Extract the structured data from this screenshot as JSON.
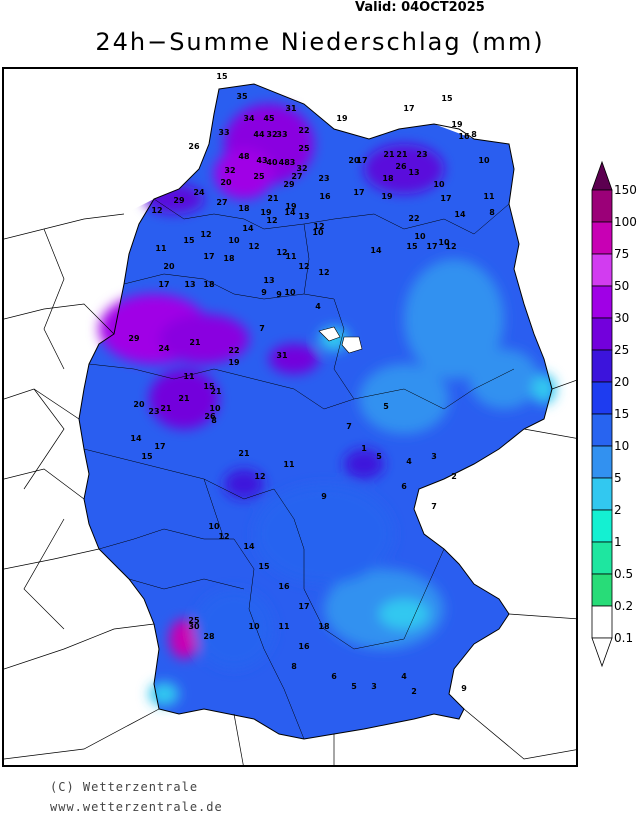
{
  "header": {
    "valid_label": "Valid: 04OCT2025",
    "title": "24h−Summe Niederschlag (mm)"
  },
  "legend": {
    "levels": [
      "150",
      "100",
      "75",
      "50",
      "30",
      "25",
      "20",
      "15",
      "10",
      "5",
      "2",
      "1",
      "0.5",
      "0.2",
      "0.1"
    ],
    "colors": [
      "#5c0050",
      "#9b0078",
      "#c800b4",
      "#d23cf0",
      "#a000e6",
      "#7300dc",
      "#3c14dc",
      "#1e3cf0",
      "#2864f0",
      "#3291f0",
      "#32c8f0",
      "#14f0d2",
      "#1ee6a0",
      "#28dc78",
      "#ffffff"
    ]
  },
  "footer": {
    "copyright": "(C) Wetterzentrale",
    "website": "www.wetterzentrale.de"
  },
  "map": {
    "stations": [
      {
        "v": "15"
      },
      {
        "v": "35"
      },
      {
        "v": "34"
      },
      {
        "v": "31"
      },
      {
        "v": "45"
      },
      {
        "v": "33"
      },
      {
        "v": "44"
      },
      {
        "v": "32"
      },
      {
        "v": "33"
      },
      {
        "v": "22"
      },
      {
        "v": "19"
      },
      {
        "v": "17"
      },
      {
        "v": "15"
      },
      {
        "v": "19"
      },
      {
        "v": "16"
      },
      {
        "v": "8"
      },
      {
        "v": "48"
      },
      {
        "v": "43"
      },
      {
        "v": "40"
      },
      {
        "v": "483"
      },
      {
        "v": "25"
      },
      {
        "v": "26"
      },
      {
        "v": "20"
      },
      {
        "v": "17"
      },
      {
        "v": "21"
      },
      {
        "v": "21"
      },
      {
        "v": "23"
      },
      {
        "v": "10"
      },
      {
        "v": "32"
      },
      {
        "v": "20"
      },
      {
        "v": "32"
      },
      {
        "v": "24"
      },
      {
        "v": "25"
      },
      {
        "v": "29"
      },
      {
        "v": "27"
      },
      {
        "v": "23"
      },
      {
        "v": "18"
      },
      {
        "v": "17"
      },
      {
        "v": "26"
      },
      {
        "v": "13"
      },
      {
        "v": "10"
      },
      {
        "v": "19"
      },
      {
        "v": "29"
      },
      {
        "v": "27"
      },
      {
        "v": "21"
      },
      {
        "v": "19"
      },
      {
        "v": "16"
      },
      {
        "v": "17"
      },
      {
        "v": "19"
      },
      {
        "v": "14"
      },
      {
        "v": "11"
      },
      {
        "v": "12"
      },
      {
        "v": "18"
      },
      {
        "v": "22"
      },
      {
        "v": "14"
      },
      {
        "v": "8"
      },
      {
        "v": "12"
      },
      {
        "v": "13"
      },
      {
        "v": "14"
      },
      {
        "v": "12"
      },
      {
        "v": "15"
      },
      {
        "v": "10"
      },
      {
        "v": "12"
      },
      {
        "v": "12"
      },
      {
        "v": "10"
      },
      {
        "v": "10"
      },
      {
        "v": "14"
      },
      {
        "v": "15"
      },
      {
        "v": "17"
      },
      {
        "v": "12"
      },
      {
        "v": "11"
      },
      {
        "v": "17"
      },
      {
        "v": "18"
      },
      {
        "v": "12"
      },
      {
        "v": "11"
      },
      {
        "v": "20"
      },
      {
        "v": "12"
      },
      {
        "v": "10"
      },
      {
        "v": "12"
      },
      {
        "v": "17"
      },
      {
        "v": "13"
      },
      {
        "v": "18"
      },
      {
        "v": "9"
      },
      {
        "v": "9"
      },
      {
        "v": "13"
      },
      {
        "v": "10"
      },
      {
        "v": "7"
      },
      {
        "v": "4"
      },
      {
        "v": "29"
      },
      {
        "v": "24"
      },
      {
        "v": "21"
      },
      {
        "v": "22"
      },
      {
        "v": "31"
      },
      {
        "v": "19"
      },
      {
        "v": "11"
      },
      {
        "v": "15"
      },
      {
        "v": "21"
      },
      {
        "v": "20"
      },
      {
        "v": "23"
      },
      {
        "v": "21"
      },
      {
        "v": "26"
      },
      {
        "v": "21"
      },
      {
        "v": "8"
      },
      {
        "v": "10"
      },
      {
        "v": "21"
      },
      {
        "v": "14"
      },
      {
        "v": "15"
      },
      {
        "v": "17"
      },
      {
        "v": "12"
      },
      {
        "v": "11"
      },
      {
        "v": "9"
      },
      {
        "v": "7"
      },
      {
        "v": "5"
      },
      {
        "v": "4"
      },
      {
        "v": "3"
      },
      {
        "v": "2"
      },
      {
        "v": "1"
      },
      {
        "v": "5"
      },
      {
        "v": "6"
      },
      {
        "v": "7"
      },
      {
        "v": "10"
      },
      {
        "v": "12"
      },
      {
        "v": "14"
      },
      {
        "v": "15"
      },
      {
        "v": "16"
      },
      {
        "v": "17"
      },
      {
        "v": "18"
      },
      {
        "v": "30"
      },
      {
        "v": "28"
      },
      {
        "v": "25"
      },
      {
        "v": "11"
      },
      {
        "v": "16"
      },
      {
        "v": "10"
      },
      {
        "v": "8"
      },
      {
        "v": "6"
      },
      {
        "v": "5"
      },
      {
        "v": "3"
      },
      {
        "v": "4"
      },
      {
        "v": "2"
      },
      {
        "v": "9"
      }
    ]
  }
}
